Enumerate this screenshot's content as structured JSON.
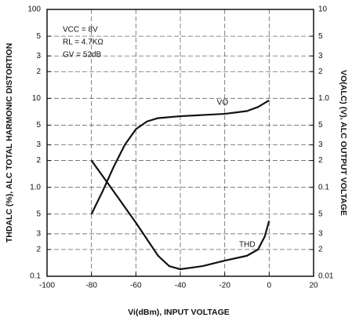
{
  "chart_data": {
    "type": "line",
    "xlabel": "Vi(dBm), INPUT VOLTAGE",
    "ylabel": "THDALC (%), ALC TOTAL HARMONIC DISTORTION",
    "y2label": "VO(ALC) (V), ALC OUTPUT VOLTAGE",
    "annotations": [
      "VCC = 8V",
      "RL = 4.7KΩ",
      "GV = 52dB"
    ],
    "xlim": [
      -100,
      20
    ],
    "xticks": [
      -100,
      -80,
      -60,
      -40,
      -20,
      0,
      20
    ],
    "ylim": [
      0.1,
      100
    ],
    "y_log": true,
    "yticks": [
      0.1,
      {
        "value": 0.2,
        "label": "2"
      },
      {
        "value": 0.3,
        "label": "3"
      },
      {
        "value": 0.5,
        "label": "5"
      },
      {
        "value": 1,
        "label": "1.0"
      },
      {
        "value": 2,
        "label": "2"
      },
      {
        "value": 3,
        "label": "3"
      },
      {
        "value": 5,
        "label": "5"
      },
      10,
      {
        "value": 20,
        "label": "2"
      },
      {
        "value": 30,
        "label": "3"
      },
      {
        "value": 50,
        "label": "5"
      },
      100
    ],
    "y2lim": [
      0.01,
      10
    ],
    "y2ticks": [
      0.01,
      {
        "value": 0.02,
        "label": "2"
      },
      {
        "value": 0.03,
        "label": "3"
      },
      {
        "value": 0.05,
        "label": "5"
      },
      0.1,
      {
        "value": 0.2,
        "label": "2"
      },
      {
        "value": 0.3,
        "label": "3"
      },
      {
        "value": 0.5,
        "label": "5"
      },
      {
        "value": 1,
        "label": "1.0"
      },
      {
        "value": 2,
        "label": "2"
      },
      {
        "value": 3,
        "label": "3"
      },
      {
        "value": 5,
        "label": "5"
      },
      10
    ],
    "grid": true,
    "series": [
      {
        "name": "VO",
        "color": "#111111",
        "axis": "y2",
        "x": [
          -80,
          -75,
          -70,
          -65,
          -60,
          -55,
          -50,
          -40,
          -30,
          -20,
          -10,
          -5,
          0
        ],
        "values": [
          0.05,
          0.09,
          0.17,
          0.3,
          0.45,
          0.55,
          0.6,
          0.63,
          0.65,
          0.67,
          0.72,
          0.8,
          0.95
        ]
      },
      {
        "name": "THD",
        "color": "#111111",
        "x": [
          -80,
          -70,
          -60,
          -50,
          -45,
          -40,
          -30,
          -20,
          -10,
          -5,
          -2,
          0
        ],
        "values": [
          2.0,
          0.9,
          0.4,
          0.17,
          0.13,
          0.12,
          0.13,
          0.15,
          0.17,
          0.2,
          0.28,
          0.42
        ]
      }
    ]
  }
}
